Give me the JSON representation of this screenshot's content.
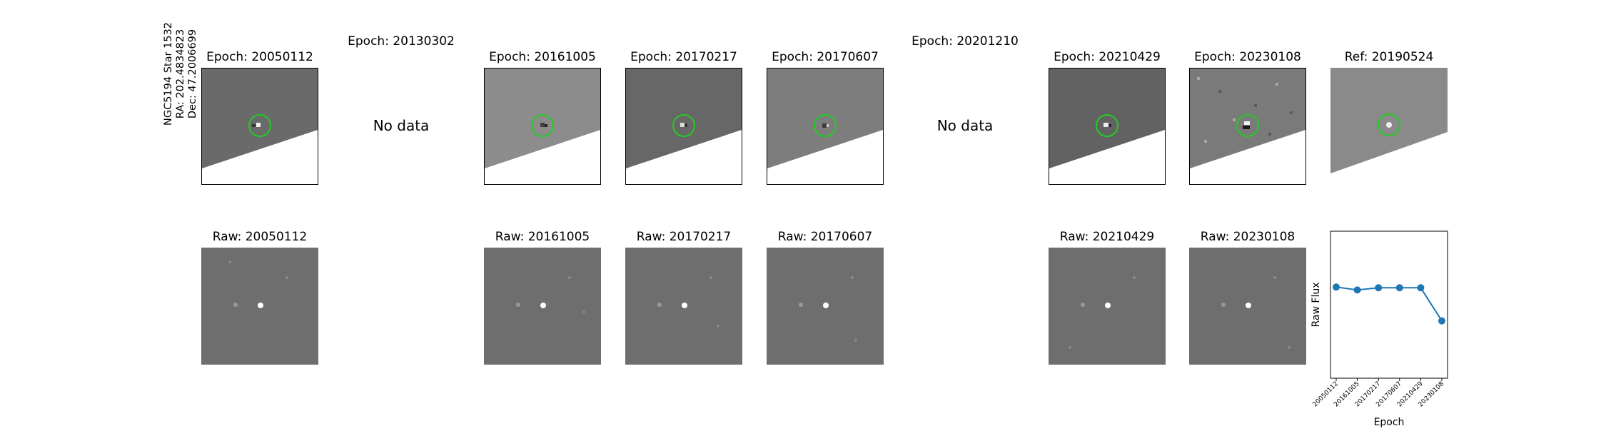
{
  "star_label": {
    "name": "NGC5194 Star 1532",
    "ra": "RA: 202.4834823",
    "dec": "Dec: 47.2006699"
  },
  "top_row": [
    {
      "title": "Epoch: 20050112",
      "has_data": true,
      "tone": "#6a6a6a"
    },
    {
      "title": "Epoch: 20130302",
      "has_data": false,
      "no_data_text": "No data"
    },
    {
      "title": "Epoch: 20161005",
      "has_data": true,
      "tone": "#8c8c8c"
    },
    {
      "title": "Epoch: 20170217",
      "has_data": true,
      "tone": "#676767"
    },
    {
      "title": "Epoch: 20170607",
      "has_data": true,
      "tone": "#7d7d7d"
    },
    {
      "title": "Epoch: 20201210",
      "has_data": false,
      "no_data_text": "No data"
    },
    {
      "title": "Epoch: 20210429",
      "has_data": true,
      "tone": "#626262"
    },
    {
      "title": "Epoch: 20230108",
      "has_data": true,
      "tone": "#7a7a7a"
    },
    {
      "title": "Ref: 20190524",
      "has_data": true,
      "tone": "#8a8a8a"
    }
  ],
  "bottom_row": [
    {
      "title": "Raw: 20050112"
    },
    {
      "title": "Raw: 20161005"
    },
    {
      "title": "Raw: 20170217"
    },
    {
      "title": "Raw: 20170607"
    },
    {
      "title": "Raw: 20210429"
    },
    {
      "title": "Raw: 20230108"
    }
  ],
  "chart_data": {
    "type": "line",
    "x": [
      "20050112",
      "20161005",
      "20170217",
      "20170607",
      "20210429",
      "20230108"
    ],
    "series": [
      {
        "values": [
          0.62,
          0.6,
          0.615,
          0.615,
          0.615,
          0.39
        ]
      }
    ],
    "xlabel": "Epoch",
    "ylabel": "Raw Flux",
    "ylim": [
      0,
      1
    ],
    "grid": false,
    "color": "#1f77b4"
  },
  "colors": {
    "marker_circle": "#22cc22",
    "white_region": "#ffffff"
  }
}
